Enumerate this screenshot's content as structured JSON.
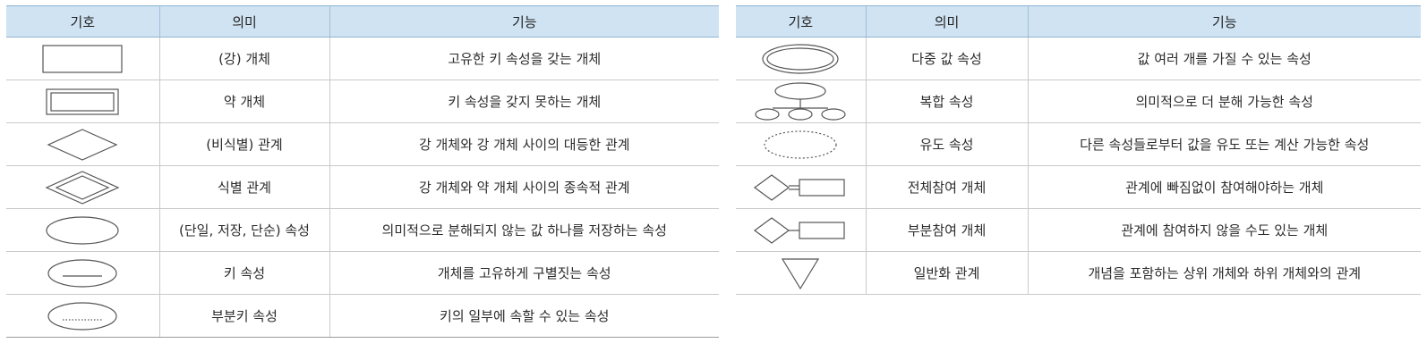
{
  "headers": {
    "symbol": "기호",
    "meaning": "의미",
    "function": "기능"
  },
  "left_rows": [
    {
      "symbol_icon": "rectangle-icon",
      "meaning": "(강) 개체",
      "function": "고유한 키 속성을 갖는 개체"
    },
    {
      "symbol_icon": "double-rectangle-icon",
      "meaning": "약 개체",
      "function": "키 속성을 갖지 못하는 개체"
    },
    {
      "symbol_icon": "diamond-icon",
      "meaning": "(비식별) 관계",
      "function": "강 개체와 강 개체 사이의 대등한 관계"
    },
    {
      "symbol_icon": "double-diamond-icon",
      "meaning": "식별 관계",
      "function": "강 개체와 약 개체 사이의 종속적 관계"
    },
    {
      "symbol_icon": "ellipse-icon",
      "meaning": "(단일, 저장, 단순) 속성",
      "function": "의미적으로 분해되지 않는 값 하나를 저장하는 속성"
    },
    {
      "symbol_icon": "ellipse-underline-icon",
      "meaning": "키 속성",
      "function": "개체를 고유하게 구별짓는 속성"
    },
    {
      "symbol_icon": "ellipse-dotted-underline-icon",
      "meaning": "부분키 속성",
      "function": "키의 일부에 속할 수 있는 속성"
    }
  ],
  "right_rows": [
    {
      "symbol_icon": "double-ellipse-icon",
      "meaning": "다중 값 속성",
      "function": "값 여러 개를 가질 수 있는 속성"
    },
    {
      "symbol_icon": "composite-ellipse-icon",
      "meaning": "복합 속성",
      "function": "의미적으로 더 분해 가능한 속성"
    },
    {
      "symbol_icon": "dashed-ellipse-icon",
      "meaning": "유도 속성",
      "function": "다른 속성들로부터 값을 유도 또는 계산 가능한 속성"
    },
    {
      "symbol_icon": "diamond-double-line-rectangle-icon",
      "meaning": "전체참여 개체",
      "function": "관계에 빠짐없이 참여해야하는 개체"
    },
    {
      "symbol_icon": "diamond-line-rectangle-icon",
      "meaning": "부분참여 개체",
      "function": "관계에 참여하지 않을 수도 있는 개체"
    },
    {
      "symbol_icon": "inverted-triangle-icon",
      "meaning": "일반화 관계",
      "function": "개념을 포함하는 상위 개체와 하위 개체와의 관계"
    }
  ]
}
